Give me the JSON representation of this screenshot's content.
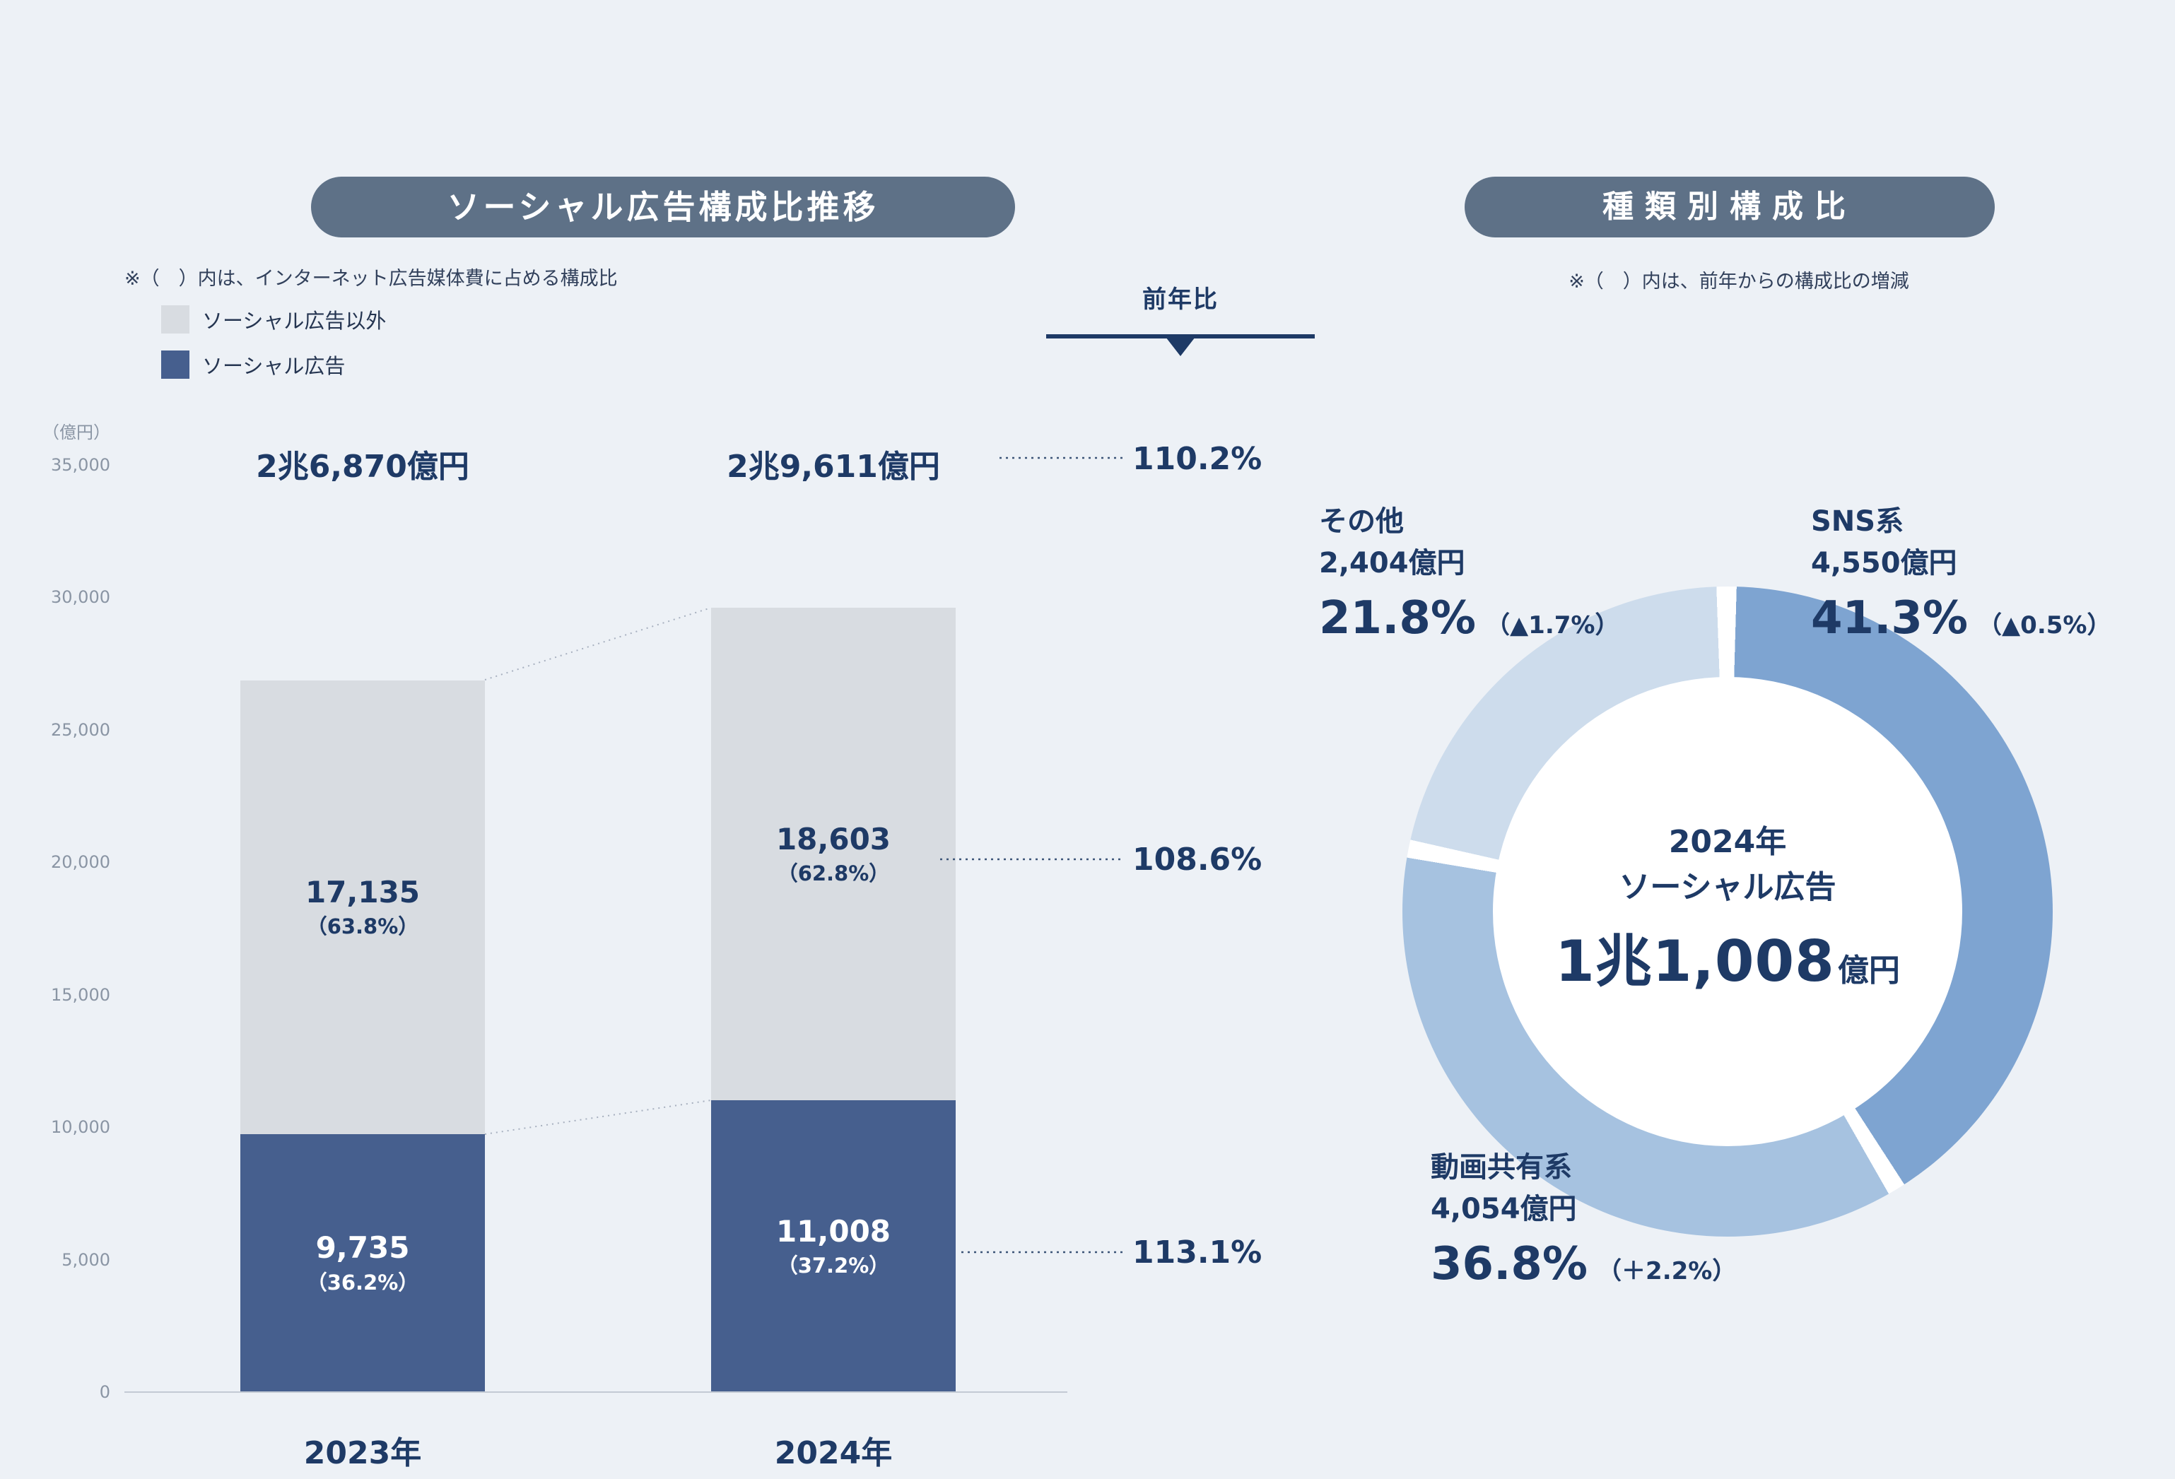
{
  "page": {
    "background": "#edf1f6",
    "navy": "#1e3a66"
  },
  "left": {
    "title": "ソーシャル広告構成比推移",
    "note": "※（　）内は、インターネット広告媒体費に占める構成比",
    "legend": [
      {
        "label": "ソーシャル広告以外",
        "color": "#d8dce1"
      },
      {
        "label": "ソーシャル広告",
        "color": "#465f8e"
      }
    ],
    "yoy_header": "前年比",
    "y_unit": "（億円）",
    "y_ticks": [
      "35,000",
      "30,000",
      "25,000",
      "20,000",
      "15,000",
      "10,000",
      "5,000",
      "0"
    ],
    "bars": [
      {
        "year": "2023年",
        "total": "2兆6,870億円",
        "blue": {
          "value": "9,735",
          "share": "（36.2%）"
        },
        "gray": {
          "value": "17,135",
          "share": "（63.8%）"
        }
      },
      {
        "year": "2024年",
        "total": "2兆9,611億円",
        "blue": {
          "value": "11,008",
          "share": "（37.2%）"
        },
        "gray": {
          "value": "18,603",
          "share": "（62.8%）"
        }
      }
    ],
    "yoy": [
      {
        "label": "110.2%"
      },
      {
        "label": "108.6%"
      },
      {
        "label": "113.1%"
      }
    ]
  },
  "right": {
    "title": "種類別構成比",
    "note": "※（　）内は、前年からの構成比の増減",
    "center": {
      "line1": "2024年",
      "line2": "ソーシャル広告",
      "amount": "1兆1,008",
      "unit": "億円"
    },
    "labels": [
      {
        "name": "SNS系",
        "amount": "4,550億円",
        "pct": "41.3%",
        "change": "（▲0.5%）"
      },
      {
        "name": "動画共有系",
        "amount": "4,054億円",
        "pct": "36.8%",
        "change": "（＋2.2%）"
      },
      {
        "name": "その他",
        "amount": "2,404億円",
        "pct": "21.8%",
        "change": "（▲1.7%）"
      }
    ]
  },
  "chart_data": [
    {
      "type": "bar",
      "stacked": true,
      "title": "ソーシャル広告構成比推移",
      "categories": [
        "2023年",
        "2024年"
      ],
      "series": [
        {
          "name": "ソーシャル広告",
          "values": [
            9735,
            11008
          ],
          "shares_pct": [
            36.2,
            37.2
          ],
          "color": "#465f8e"
        },
        {
          "name": "ソーシャル広告以外",
          "values": [
            17135,
            18603
          ],
          "shares_pct": [
            63.8,
            62.8
          ],
          "color": "#d8dce1"
        }
      ],
      "totals": [
        26870,
        29611
      ],
      "total_labels": [
        "2兆6,870億円",
        "2兆9,611億円"
      ],
      "yoy_pct": {
        "total": 110.2,
        "non_social": 108.6,
        "social": 113.1
      },
      "ylabel": "（億円）",
      "ylim": [
        0,
        35000
      ],
      "y_tick_step": 5000,
      "grid": false
    },
    {
      "type": "pie",
      "donut": true,
      "title": "種類別構成比",
      "center_label": [
        "2024年",
        "ソーシャル広告",
        "1兆1,008億円"
      ],
      "slices": [
        {
          "label": "SNS系",
          "value": 4550,
          "pct": 41.3,
          "change_pts": -0.5,
          "color": "#7ea4d1"
        },
        {
          "label": "動画共有系",
          "value": 4054,
          "pct": 36.8,
          "change_pts": 2.2,
          "color": "#a6c2e0"
        },
        {
          "label": "その他",
          "value": 2404,
          "pct": 21.8,
          "change_pts": -1.7,
          "color": "#cddcec"
        }
      ],
      "start_angle_deg": 0,
      "clockwise": true
    }
  ]
}
